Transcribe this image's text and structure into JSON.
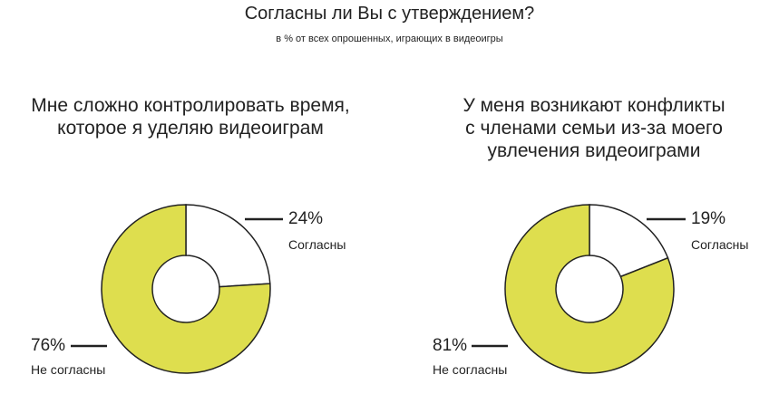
{
  "colors": {
    "disagree": "#dede4e",
    "agree": "#ffffff",
    "stroke": "#222222"
  },
  "chart_data": {
    "title": "Согласны ли Вы с утверждением?",
    "subtitle": "в % от всех опрошенных, играющих в видеоигры",
    "charts": [
      {
        "type": "pie",
        "title_lines": [
          "Мне сложно контролировать время,",
          "которое я уделяю видеоиграм"
        ],
        "slices": [
          {
            "label": "Согласны",
            "value": 24,
            "value_label": "24%"
          },
          {
            "label": "Не согласны",
            "value": 76,
            "value_label": "76%"
          }
        ]
      },
      {
        "type": "pie",
        "title_lines": [
          "У меня возникают конфликты",
          "с членами семьи из-за моего",
          "увлечения видеоиграми"
        ],
        "slices": [
          {
            "label": "Согласны",
            "value": 19,
            "value_label": "19%"
          },
          {
            "label": "Не согласны",
            "value": 81,
            "value_label": "81%"
          }
        ]
      }
    ]
  }
}
